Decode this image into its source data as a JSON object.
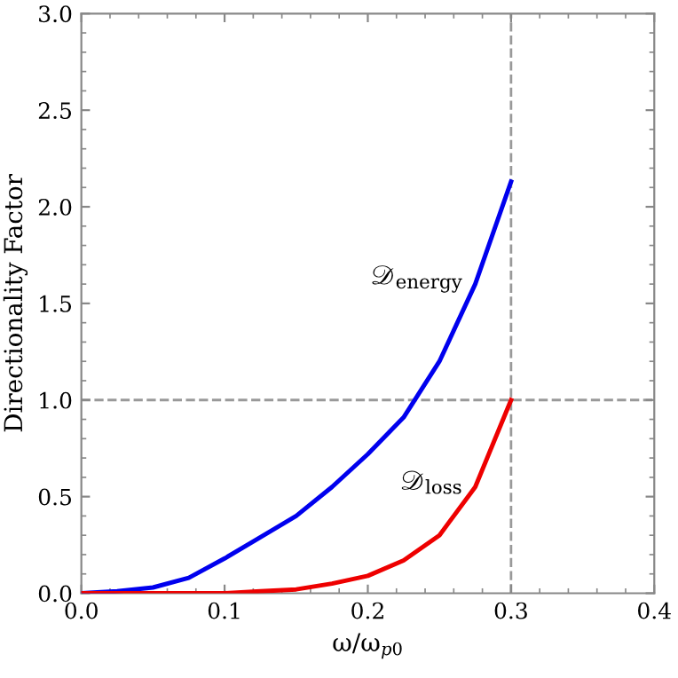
{
  "chart_data": {
    "type": "line",
    "xlabel": "ω/ω$_{p0}$",
    "ylabel": "Directionality Factor",
    "xlim": [
      0,
      0.4
    ],
    "ylim": [
      0,
      3.0
    ],
    "xticks": [
      {
        "value": 0,
        "label": "0.0"
      },
      0.1,
      0.2,
      0.3,
      0.4
    ],
    "yticks": [
      {
        "value": 0,
        "label": "0.0"
      },
      0.5,
      {
        "value": 1,
        "label": "1.0"
      },
      1.5,
      {
        "value": 2,
        "label": "2.0"
      },
      2.5,
      {
        "value": 3,
        "label": "3.0"
      }
    ],
    "grid": false,
    "legend": false,
    "marker": "none",
    "line_style": "solid",
    "ref_lines": [
      {
        "axis": "y",
        "value": 1,
        "color": "#999999",
        "line_style": "dashed"
      },
      {
        "axis": "x",
        "value": 0.3,
        "color": "#999999",
        "line_style": "dashed"
      }
    ],
    "series": [
      {
        "name": "𝒟$_{energy}$",
        "color": "#0000ee",
        "x": [
          0,
          0.025,
          0.05,
          0.075,
          0.1,
          0.125,
          0.15,
          0.175,
          0.2,
          0.225,
          0.25,
          0.275,
          0.3
        ],
        "values": [
          0,
          0.01,
          0.03,
          0.08,
          0.18,
          0.29,
          0.4,
          0.55,
          0.72,
          0.91,
          1.2,
          1.6,
          2.13
        ]
      },
      {
        "name": "𝒟$_{loss}$",
        "color": "#ee0000",
        "x": [
          0,
          0.05,
          0.1,
          0.125,
          0.15,
          0.175,
          0.2,
          0.225,
          0.25,
          0.275,
          0.3
        ],
        "values": [
          0,
          0,
          0,
          0.01,
          0.02,
          0.05,
          0.09,
          0.17,
          0.3,
          0.55,
          1.0
        ]
      }
    ]
  }
}
